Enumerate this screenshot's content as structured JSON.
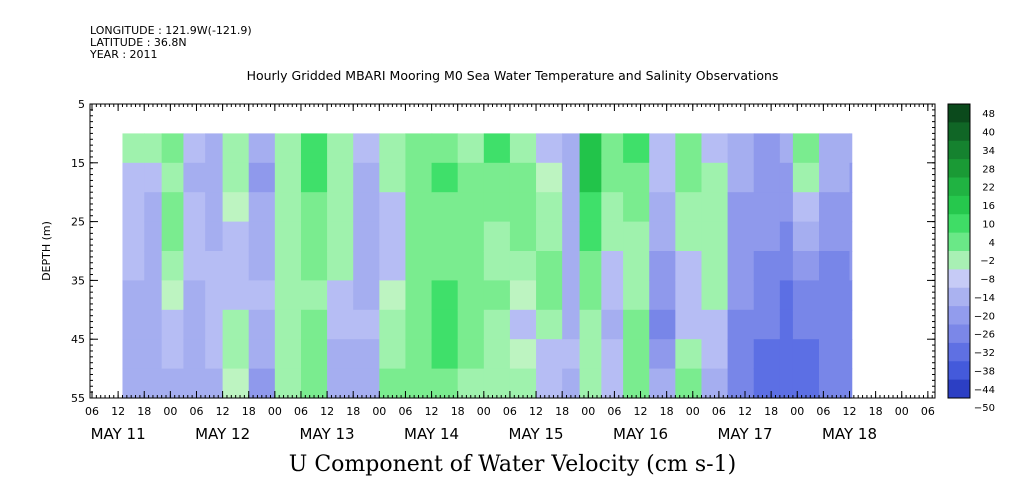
{
  "info": {
    "longitude": "LONGITUDE : 121.9W(-121.9)",
    "latitude": "LATITUDE : 36.8N",
    "year": "YEAR : 2011"
  },
  "chart_data": {
    "type": "heatmap",
    "title": "Hourly Gridded MBARI Mooring M0 Sea Water Temperature and Salinity Observations",
    "xlabel": "U Component of Water Velocity (cm s-1)",
    "ylabel": "DEPTH (m)",
    "ylim": [
      55,
      5
    ],
    "y_ticks": [
      5,
      15,
      25,
      35,
      45,
      55
    ],
    "x_hour_ticks": [
      "06",
      "12",
      "18",
      "00",
      "06",
      "12",
      "18",
      "00",
      "06",
      "12",
      "18",
      "00",
      "06",
      "12",
      "18",
      "00",
      "06",
      "12",
      "18",
      "00",
      "06",
      "12",
      "18",
      "00",
      "06",
      "12",
      "18",
      "00",
      "06",
      "12",
      "18",
      "00",
      "06"
    ],
    "x_day_labels": [
      "MAY 11",
      "MAY 12",
      "MAY 13",
      "MAY 14",
      "MAY 15",
      "MAY 16",
      "MAY 17",
      "MAY 18"
    ],
    "data_depth_range": [
      10,
      55
    ],
    "colorbar_labels": [
      48,
      40,
      34,
      28,
      22,
      16,
      10,
      4,
      -2,
      -8,
      -14,
      -20,
      -26,
      -32,
      -38,
      -44,
      -50
    ],
    "time_resolution": "hourly",
    "time_start": "MAY 11 13:00",
    "time_end": "MAY 18 12:00",
    "columns": [
      {
        "time": "MAY 11 13",
        "u": [
          4,
          -4,
          -4,
          -6,
          -6,
          -8,
          -8,
          -8,
          -10
        ]
      },
      {
        "time": "MAY 11 18",
        "u": [
          2,
          -6,
          -8,
          -8,
          -10,
          -10,
          -10,
          -8,
          -8
        ]
      },
      {
        "time": "MAY 11 22",
        "u": [
          8,
          4,
          8,
          10,
          6,
          -2,
          -4,
          -6,
          -10
        ]
      },
      {
        "time": "MAY 12 03",
        "u": [
          -4,
          -8,
          -6,
          -6,
          -6,
          -8,
          -8,
          -10,
          -10
        ]
      },
      {
        "time": "MAY 12 08",
        "u": [
          -8,
          -10,
          -10,
          -8,
          -6,
          -4,
          -4,
          -6,
          -10
        ]
      },
      {
        "time": "MAY 12 12",
        "u": [
          4,
          2,
          -2,
          -4,
          -6,
          -4,
          4,
          4,
          -2
        ]
      },
      {
        "time": "MAY 12 18",
        "u": [
          -10,
          -12,
          -10,
          -10,
          -8,
          -6,
          -8,
          -10,
          -12
        ]
      },
      {
        "time": "MAY 13 00",
        "u": [
          6,
          4,
          4,
          2,
          4,
          4,
          6,
          6,
          4
        ]
      },
      {
        "time": "MAY 13 06",
        "u": [
          16,
          14,
          12,
          10,
          8,
          6,
          8,
          10,
          12
        ]
      },
      {
        "time": "MAY 13 12",
        "u": [
          4,
          2,
          2,
          4,
          4,
          -4,
          -6,
          -8,
          -10
        ]
      },
      {
        "time": "MAY 13 18",
        "u": [
          -6,
          -8,
          -8,
          -10,
          -10,
          -8,
          -6,
          -8,
          -10
        ]
      },
      {
        "time": "MAY 14 00",
        "u": [
          4,
          2,
          -4,
          -6,
          -4,
          -2,
          4,
          6,
          8
        ]
      },
      {
        "time": "MAY 14 06",
        "u": [
          8,
          10,
          10,
          8,
          8,
          8,
          10,
          12,
          10
        ]
      },
      {
        "time": "MAY 14 12",
        "u": [
          12,
          14,
          12,
          12,
          12,
          14,
          16,
          18,
          10
        ]
      },
      {
        "time": "MAY 14 18",
        "u": [
          6,
          8,
          10,
          10,
          8,
          10,
          12,
          10,
          4
        ]
      },
      {
        "time": "MAY 15 00",
        "u": [
          18,
          10,
          8,
          6,
          6,
          8,
          6,
          4,
          4
        ]
      },
      {
        "time": "MAY 15 06",
        "u": [
          4,
          8,
          10,
          8,
          6,
          -2,
          -4,
          -2,
          4
        ]
      },
      {
        "time": "MAY 15 12",
        "u": [
          -4,
          -2,
          4,
          6,
          8,
          8,
          4,
          -4,
          -6
        ]
      },
      {
        "time": "MAY 15 18",
        "u": [
          -8,
          -8,
          -10,
          -8,
          -8,
          -10,
          -8,
          -6,
          -8
        ]
      },
      {
        "time": "MAY 15 22",
        "u": [
          22,
          20,
          18,
          14,
          10,
          8,
          6,
          6,
          4
        ]
      },
      {
        "time": "MAY 16 03",
        "u": [
          10,
          8,
          6,
          4,
          -4,
          -6,
          -8,
          -6,
          -4
        ]
      },
      {
        "time": "MAY 16 08",
        "u": [
          18,
          10,
          8,
          6,
          4,
          4,
          8,
          10,
          12
        ]
      },
      {
        "time": "MAY 16 14",
        "u": [
          -4,
          -6,
          -8,
          -10,
          -12,
          -14,
          -16,
          -12,
          -8
        ]
      },
      {
        "time": "MAY 16 20",
        "u": [
          12,
          8,
          6,
          4,
          -4,
          -6,
          -4,
          6,
          8
        ]
      },
      {
        "time": "MAY 17 02",
        "u": [
          -4,
          4,
          6,
          6,
          4,
          2,
          -4,
          -6,
          -8
        ]
      },
      {
        "time": "MAY 17 08",
        "u": [
          -8,
          -10,
          -12,
          -12,
          -14,
          -14,
          -16,
          -16,
          -18
        ]
      },
      {
        "time": "MAY 17 14",
        "u": [
          -14,
          -14,
          -12,
          -14,
          -16,
          -18,
          -18,
          -20,
          -20
        ]
      },
      {
        "time": "MAY 17 20",
        "u": [
          -10,
          -12,
          -14,
          -16,
          -18,
          -20,
          -20,
          -22,
          -22
        ]
      },
      {
        "time": "MAY 17 23",
        "u": [
          8,
          4,
          -6,
          -10,
          -14,
          -16,
          -18,
          -20,
          -20
        ]
      },
      {
        "time": "MAY 18 05",
        "u": [
          -8,
          -10,
          -12,
          -14,
          -16,
          -16,
          -18,
          -18,
          -18
        ]
      },
      {
        "time": "MAY 18 12",
        "u": [
          -10,
          -12,
          -12,
          -14,
          -14,
          -16,
          -16,
          -16,
          -16
        ]
      }
    ],
    "grid": false
  }
}
